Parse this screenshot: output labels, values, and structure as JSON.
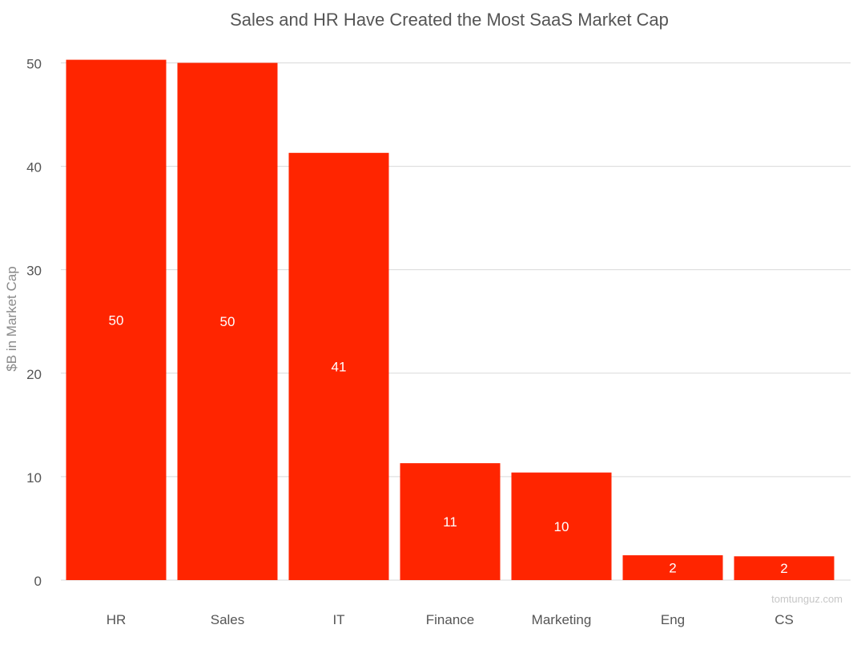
{
  "chart_data": {
    "type": "bar",
    "title": "Sales and HR Have Created the Most SaaS Market Cap",
    "xlabel": "",
    "ylabel": "$B in Market Cap",
    "categories": [
      "HR",
      "Sales",
      "IT",
      "Finance",
      "Marketing",
      "Eng",
      "CS"
    ],
    "values": [
      50.3,
      50.0,
      41.3,
      11.3,
      10.4,
      2.4,
      2.3
    ],
    "data_labels": [
      "50",
      "50",
      "41",
      "11",
      "10",
      "2",
      "2"
    ],
    "ylim": [
      0,
      50.5
    ],
    "yticks": [
      0,
      10,
      20,
      30,
      40,
      50
    ],
    "ytick_labels": [
      "0",
      "10",
      "20",
      "30",
      "40",
      "50"
    ],
    "grid": true,
    "legend": "none",
    "watermark": "tomtunguz.com",
    "colors": {
      "bar": "#ff2500",
      "grid": "#d9d9d9",
      "axis_text": "#555555",
      "title_text": "#555555",
      "data_label": "#ffffff",
      "watermark": "#c7c7c7"
    }
  }
}
